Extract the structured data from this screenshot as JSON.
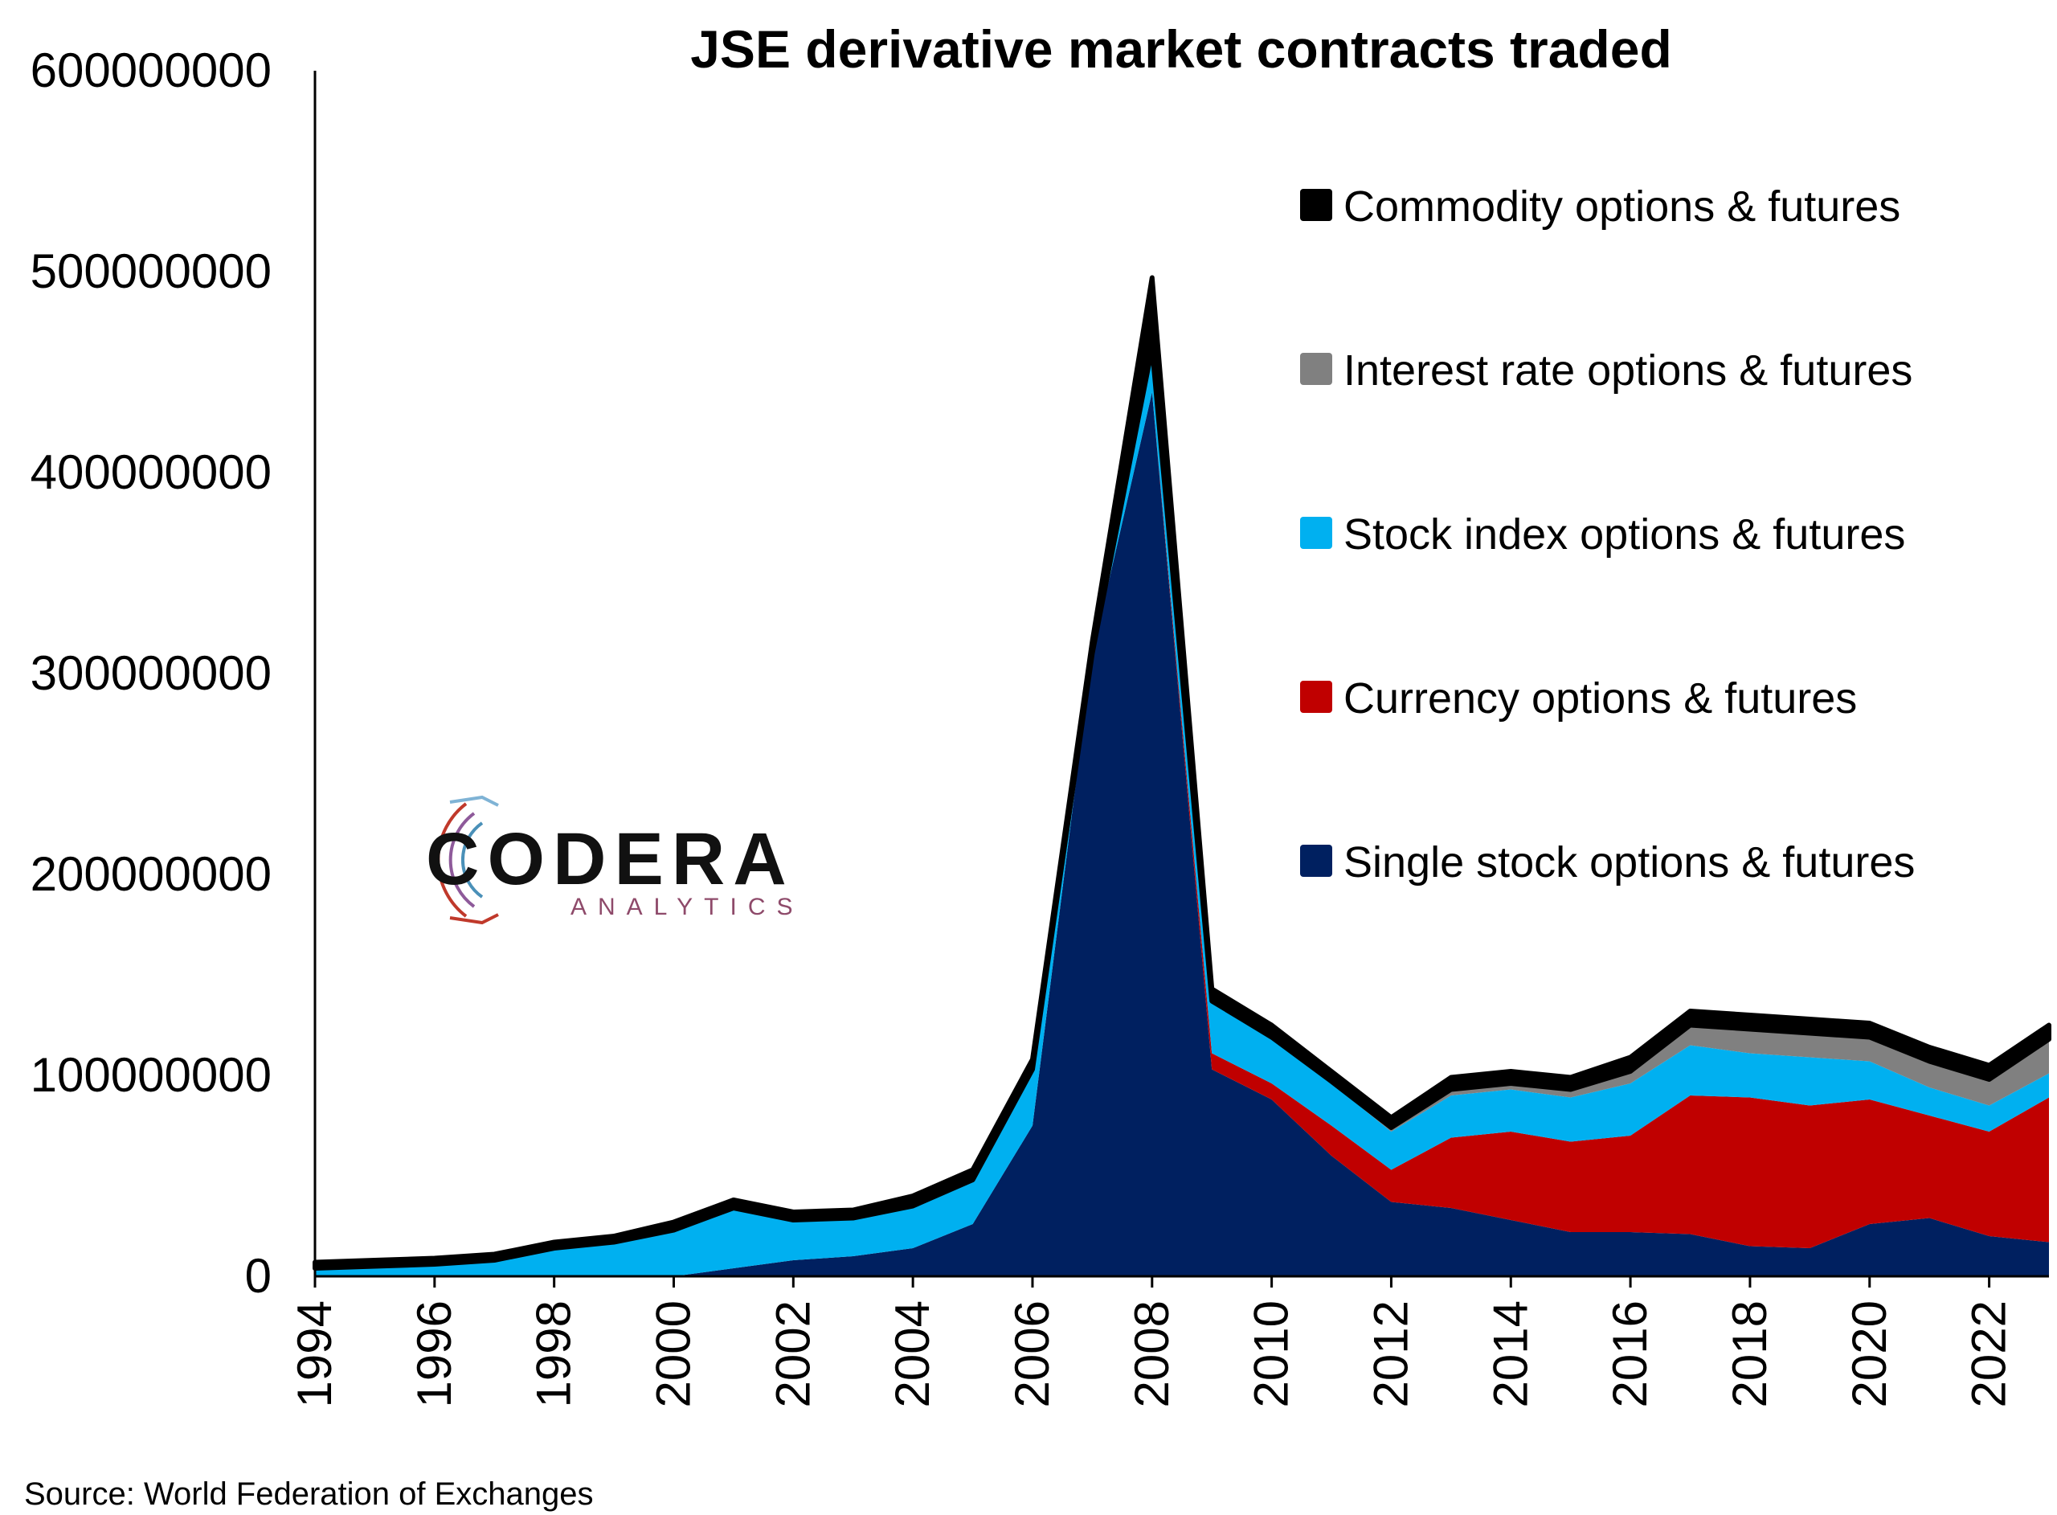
{
  "chart_data": {
    "type": "area",
    "stacked": true,
    "title": "JSE derivative market contracts traded",
    "xlabel": "",
    "ylabel": "",
    "ylim": [
      0,
      600000000
    ],
    "y_ticks": [
      "0",
      "100000000",
      "200000000",
      "300000000",
      "400000000",
      "500000000",
      "600000000"
    ],
    "x_ticks": [
      "1994",
      "1996",
      "1998",
      "2000",
      "2002",
      "2004",
      "2006",
      "2008",
      "2010",
      "2012",
      "2014",
      "2016",
      "2018",
      "2020",
      "2022"
    ],
    "x": [
      1994,
      1995,
      1996,
      1997,
      1998,
      1999,
      2000,
      2001,
      2002,
      2003,
      2004,
      2005,
      2006,
      2007,
      2008,
      2009,
      2010,
      2011,
      2012,
      2013,
      2014,
      2015,
      2016,
      2017,
      2018,
      2019,
      2020,
      2021,
      2022,
      2023
    ],
    "grid": false,
    "legend_position": "right",
    "series": [
      {
        "name": "Single stock options & futures",
        "color": "#002060",
        "values": [
          0,
          0,
          0,
          0,
          0,
          0,
          0,
          4000000,
          8000000,
          10000000,
          14000000,
          26000000,
          75000000,
          310000000,
          440000000,
          103000000,
          88000000,
          60000000,
          37000000,
          34000000,
          28000000,
          22000000,
          22000000,
          21000000,
          15000000,
          14000000,
          26000000,
          29000000,
          20000000,
          17000000
        ]
      },
      {
        "name": "Currency options & futures",
        "color": "#C00000",
        "values": [
          0,
          0,
          0,
          0,
          0,
          0,
          0,
          0,
          0,
          0,
          0,
          0,
          0,
          0,
          0,
          8000000,
          8000000,
          15000000,
          16000000,
          35000000,
          44000000,
          45000000,
          48000000,
          69000000,
          74000000,
          71000000,
          62000000,
          51000000,
          52000000,
          72000000
        ]
      },
      {
        "name": "Stock index options & futures",
        "color": "#00B0F0",
        "values": [
          4000000,
          5000000,
          6000000,
          8000000,
          14000000,
          17000000,
          23000000,
          30000000,
          20000000,
          19000000,
          21000000,
          22000000,
          28000000,
          0,
          22000000,
          26000000,
          23000000,
          21000000,
          19000000,
          21000000,
          21000000,
          22000000,
          26000000,
          25000000,
          22000000,
          24000000,
          19000000,
          14000000,
          13000000,
          12000000
        ]
      },
      {
        "name": "Interest rate options & futures",
        "color": "#808080",
        "values": [
          0,
          0,
          0,
          0,
          0,
          0,
          0,
          0,
          0,
          0,
          0,
          0,
          0,
          0,
          0,
          0,
          0,
          1000000,
          2000000,
          3000000,
          3000000,
          4000000,
          6000000,
          10000000,
          12000000,
          12000000,
          12000000,
          13000000,
          13000000,
          17000000
        ]
      },
      {
        "name": "Commodity options & futures",
        "color": "#000000",
        "values": [
          3000000,
          3000000,
          3000000,
          3000000,
          3000000,
          3000000,
          4000000,
          4000000,
          4000000,
          4000000,
          5000000,
          5000000,
          5000000,
          6000000,
          35000000,
          6000000,
          6000000,
          5000000,
          5000000,
          6000000,
          6000000,
          6000000,
          7000000,
          7000000,
          7000000,
          7000000,
          7000000,
          7000000,
          7000000,
          7000000
        ]
      }
    ],
    "legend_order": [
      "Commodity options & futures",
      "Interest rate options & futures",
      "Stock index options & futures",
      "Currency options & futures",
      "Single stock options & futures"
    ]
  },
  "logo": {
    "name": "CODERA",
    "tagline": "ANALYTICS"
  },
  "source": "Source: World Federation of Exchanges"
}
